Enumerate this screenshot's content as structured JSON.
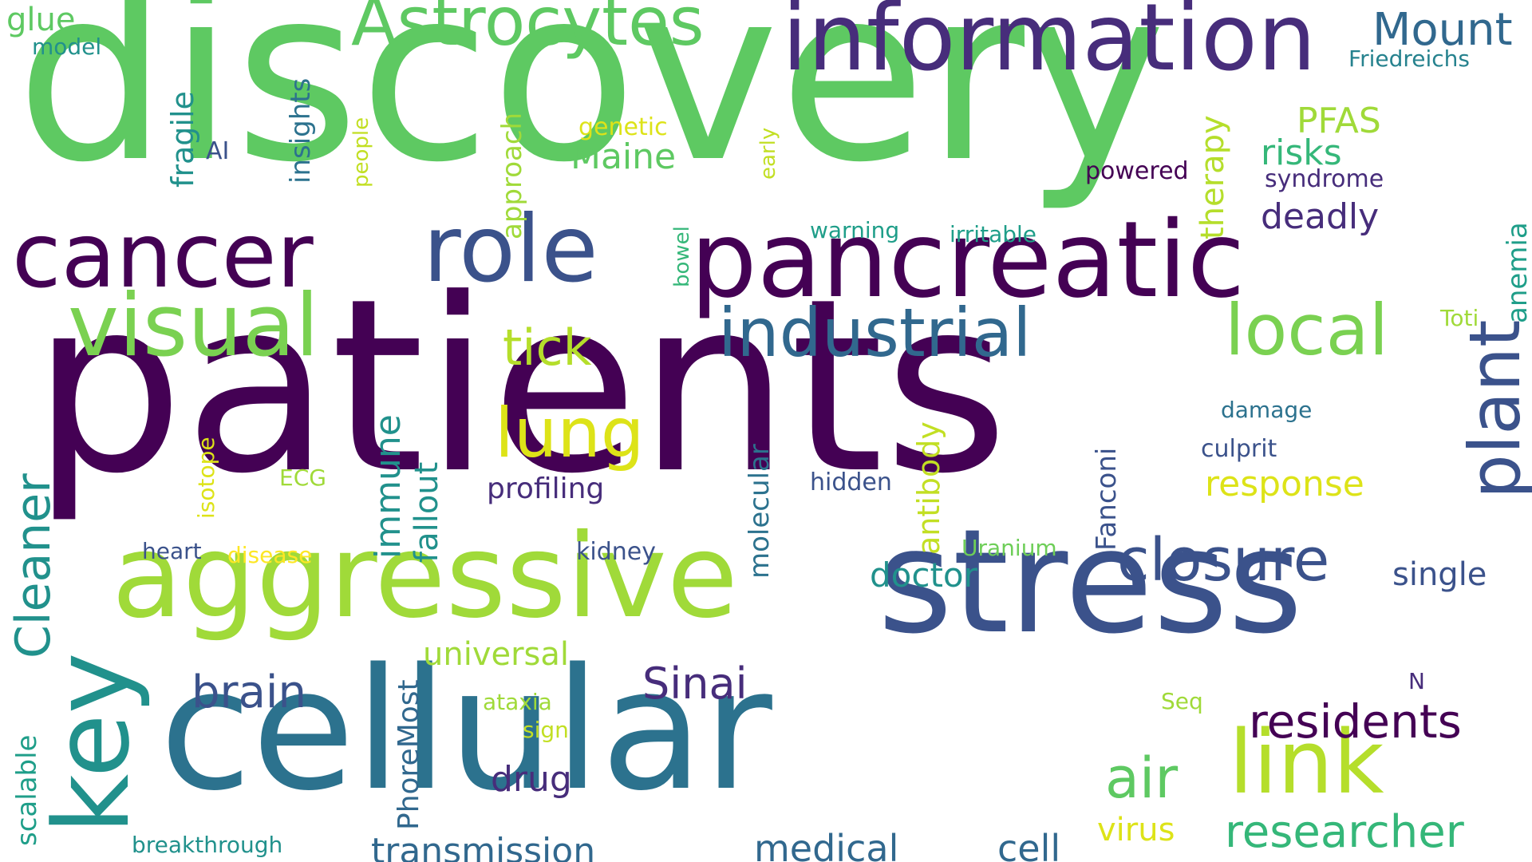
{
  "palette": {
    "deep_purple": "#440154",
    "purple": "#482878",
    "indigo": "#3e4989",
    "blue": "#31688e",
    "teal": "#26828e",
    "green_teal": "#1f9e89",
    "green": "#35b779",
    "light_green": "#6ece58",
    "lime": "#b5de2b",
    "yellow": "#fde725"
  },
  "words": [
    {
      "text": "discovery",
      "color": "#5ec962",
      "orientation": "horizontal"
    },
    {
      "text": "patients",
      "color": "#440154",
      "orientation": "horizontal"
    },
    {
      "text": "cellular",
      "color": "#2c728e",
      "orientation": "horizontal"
    },
    {
      "text": "stress",
      "color": "#3b528b",
      "orientation": "horizontal"
    },
    {
      "text": "aggressive",
      "color": "#a0da39",
      "orientation": "horizontal"
    },
    {
      "text": "pancreatic",
      "color": "#440154",
      "orientation": "horizontal"
    },
    {
      "text": "information",
      "color": "#472d7b",
      "orientation": "horizontal"
    },
    {
      "text": "cancer",
      "color": "#440154",
      "orientation": "horizontal"
    },
    {
      "text": "role",
      "color": "#3b528b",
      "orientation": "horizontal"
    },
    {
      "text": "visual",
      "color": "#7ad151",
      "orientation": "horizontal"
    },
    {
      "text": "Astrocytes",
      "color": "#5ec962",
      "orientation": "horizontal"
    },
    {
      "text": "industrial",
      "color": "#31688e",
      "orientation": "horizontal"
    },
    {
      "text": "local",
      "color": "#7ad151",
      "orientation": "horizontal"
    },
    {
      "text": "closure",
      "color": "#3b528b",
      "orientation": "horizontal"
    },
    {
      "text": "link",
      "color": "#b5de2b",
      "orientation": "horizontal"
    },
    {
      "text": "researcher",
      "color": "#35b779",
      "orientation": "horizontal"
    },
    {
      "text": "key",
      "color": "#21918c",
      "orientation": "vertical"
    },
    {
      "text": "plant",
      "color": "#3b528b",
      "orientation": "vertical"
    },
    {
      "text": "Mount",
      "color": "#31688e",
      "orientation": "horizontal"
    },
    {
      "text": "lung",
      "color": "#dde318",
      "orientation": "horizontal"
    },
    {
      "text": "residents",
      "color": "#440154",
      "orientation": "horizontal"
    },
    {
      "text": "brain",
      "color": "#3b528b",
      "orientation": "horizontal"
    },
    {
      "text": "Sinai",
      "color": "#472d7b",
      "orientation": "horizontal"
    },
    {
      "text": "air",
      "color": "#5ec962",
      "orientation": "horizontal"
    },
    {
      "text": "tick",
      "color": "#b5de2b",
      "orientation": "horizontal"
    },
    {
      "text": "Cleaner",
      "color": "#21918c",
      "orientation": "vertical"
    },
    {
      "text": "transmission",
      "color": "#31688e",
      "orientation": "horizontal"
    },
    {
      "text": "medical",
      "color": "#31688e",
      "orientation": "horizontal"
    },
    {
      "text": "cell",
      "color": "#31688e",
      "orientation": "horizontal"
    },
    {
      "text": "response",
      "color": "#dde318",
      "orientation": "horizontal"
    },
    {
      "text": "deadly",
      "color": "#472d7b",
      "orientation": "horizontal"
    },
    {
      "text": "universal",
      "color": "#a0da39",
      "orientation": "horizontal"
    },
    {
      "text": "doctor",
      "color": "#21918c",
      "orientation": "horizontal"
    },
    {
      "text": "drug",
      "color": "#472d7b",
      "orientation": "horizontal"
    },
    {
      "text": "Maine",
      "color": "#5ec962",
      "orientation": "horizontal"
    },
    {
      "text": "risks",
      "color": "#35b779",
      "orientation": "horizontal"
    },
    {
      "text": "PFAS",
      "color": "#a0da39",
      "orientation": "horizontal"
    },
    {
      "text": "single",
      "color": "#3b528b",
      "orientation": "horizontal"
    },
    {
      "text": "virus",
      "color": "#dde318",
      "orientation": "horizontal"
    },
    {
      "text": "profiling",
      "color": "#472d7b",
      "orientation": "horizontal"
    },
    {
      "text": "immune",
      "color": "#21918c",
      "orientation": "vertical"
    },
    {
      "text": "fallout",
      "color": "#21918c",
      "orientation": "vertical"
    },
    {
      "text": "antibody",
      "color": "#c2df23",
      "orientation": "vertical"
    },
    {
      "text": "molecular",
      "color": "#2c728e",
      "orientation": "vertical"
    },
    {
      "text": "Fanconi",
      "color": "#3b528b",
      "orientation": "vertical"
    },
    {
      "text": "PhoreMost",
      "color": "#31688e",
      "orientation": "vertical"
    },
    {
      "text": "therapy",
      "color": "#b5de2b",
      "orientation": "vertical"
    },
    {
      "text": "approach",
      "color": "#a0da39",
      "orientation": "vertical"
    },
    {
      "text": "fragile",
      "color": "#21918c",
      "orientation": "vertical"
    },
    {
      "text": "insights",
      "color": "#2c728e",
      "orientation": "vertical"
    },
    {
      "text": "anemia",
      "color": "#1f9e89",
      "orientation": "vertical"
    },
    {
      "text": "scalable",
      "color": "#1f9e89",
      "orientation": "vertical"
    },
    {
      "text": "isotope",
      "color": "#dde318",
      "orientation": "vertical"
    },
    {
      "text": "people",
      "color": "#c2df23",
      "orientation": "vertical"
    },
    {
      "text": "early",
      "color": "#c2df23",
      "orientation": "vertical"
    },
    {
      "text": "bowel",
      "color": "#35b779",
      "orientation": "vertical"
    },
    {
      "text": "glue",
      "color": "#5ec962",
      "orientation": "horizontal"
    },
    {
      "text": "model",
      "color": "#21918c",
      "orientation": "horizontal"
    },
    {
      "text": "AI",
      "color": "#3b528b",
      "orientation": "horizontal"
    },
    {
      "text": "genetic",
      "color": "#dde318",
      "orientation": "horizontal"
    },
    {
      "text": "powered",
      "color": "#440154",
      "orientation": "horizontal"
    },
    {
      "text": "syndrome",
      "color": "#472d7b",
      "orientation": "horizontal"
    },
    {
      "text": "Friedreichs",
      "color": "#26828e",
      "orientation": "horizontal"
    },
    {
      "text": "warning",
      "color": "#1f9e89",
      "orientation": "horizontal"
    },
    {
      "text": "irritable",
      "color": "#1f9e89",
      "orientation": "horizontal"
    },
    {
      "text": "Toti",
      "color": "#a0da39",
      "orientation": "horizontal"
    },
    {
      "text": "damage",
      "color": "#2c728e",
      "orientation": "horizontal"
    },
    {
      "text": "culprit",
      "color": "#3b528b",
      "orientation": "horizontal"
    },
    {
      "text": "hidden",
      "color": "#3b528b",
      "orientation": "horizontal"
    },
    {
      "text": "ECG",
      "color": "#a0da39",
      "orientation": "horizontal"
    },
    {
      "text": "heart",
      "color": "#3b528b",
      "orientation": "horizontal"
    },
    {
      "text": "disease",
      "color": "#fde725",
      "orientation": "horizontal"
    },
    {
      "text": "kidney",
      "color": "#3b528b",
      "orientation": "horizontal"
    },
    {
      "text": "Uranium",
      "color": "#6ece58",
      "orientation": "horizontal"
    },
    {
      "text": "N",
      "color": "#472d7b",
      "orientation": "horizontal"
    },
    {
      "text": "Seq",
      "color": "#a0da39",
      "orientation": "horizontal"
    },
    {
      "text": "ataxia",
      "color": "#a0da39",
      "orientation": "horizontal"
    },
    {
      "text": "sign",
      "color": "#c2df23",
      "orientation": "horizontal"
    },
    {
      "text": "breakthrough",
      "color": "#21918c",
      "orientation": "horizontal"
    }
  ]
}
